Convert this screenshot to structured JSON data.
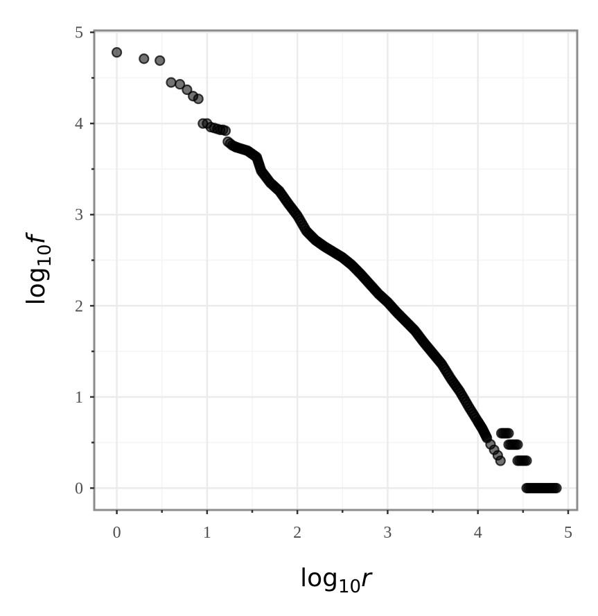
{
  "chart_data": {
    "type": "scatter",
    "title": "",
    "xlabel": "log10r",
    "ylabel": "log10f",
    "xlabel_parts": {
      "base": "log",
      "sub": "10",
      "var": "r"
    },
    "ylabel_parts": {
      "base": "log",
      "sub": "10",
      "var": "f"
    },
    "xlim": [
      -0.25,
      5.1
    ],
    "ylim": [
      -0.24,
      5.02
    ],
    "x_ticks": [
      0,
      1,
      2,
      3,
      4,
      5
    ],
    "y_ticks": [
      0,
      1,
      2,
      3,
      4,
      5
    ],
    "x_tick_labels": [
      "0",
      "1",
      "2",
      "3",
      "4",
      "5"
    ],
    "y_tick_labels": [
      "0",
      "1",
      "2",
      "3",
      "4",
      "5"
    ],
    "grid": true,
    "minor_grid": true,
    "legend": "none",
    "colors": {
      "point": "#000000",
      "point_alpha": 0.55,
      "grid": "#ebebeb",
      "frame": "#8c8c8c"
    },
    "points": [
      {
        "x": 0.0,
        "y": 4.78
      },
      {
        "x": 0.301,
        "y": 4.71
      },
      {
        "x": 0.477,
        "y": 4.69
      },
      {
        "x": 0.602,
        "y": 4.45
      },
      {
        "x": 0.699,
        "y": 4.43
      },
      {
        "x": 0.778,
        "y": 4.37
      },
      {
        "x": 0.845,
        "y": 4.3
      },
      {
        "x": 0.903,
        "y": 4.27
      },
      {
        "x": 0.954,
        "y": 4.0
      },
      {
        "x": 1.0,
        "y": 4.0
      },
      {
        "x": 1.041,
        "y": 3.96
      },
      {
        "x": 1.079,
        "y": 3.95
      },
      {
        "x": 1.114,
        "y": 3.94
      },
      {
        "x": 1.146,
        "y": 3.93
      },
      {
        "x": 1.176,
        "y": 3.93
      },
      {
        "x": 1.204,
        "y": 3.92
      },
      {
        "x": 1.23,
        "y": 3.8
      },
      {
        "x": 1.255,
        "y": 3.78
      },
      {
        "x": 1.279,
        "y": 3.76
      },
      {
        "x": 1.301,
        "y": 3.75
      },
      {
        "x": 1.322,
        "y": 3.74
      }
    ],
    "curve": [
      [
        1.32,
        3.74
      ],
      [
        1.45,
        3.7
      ],
      [
        1.55,
        3.63
      ],
      [
        1.6,
        3.48
      ],
      [
        1.7,
        3.35
      ],
      [
        1.8,
        3.26
      ],
      [
        1.9,
        3.12
      ],
      [
        2.0,
        2.99
      ],
      [
        2.1,
        2.82
      ],
      [
        2.2,
        2.72
      ],
      [
        2.3,
        2.65
      ],
      [
        2.4,
        2.59
      ],
      [
        2.5,
        2.53
      ],
      [
        2.6,
        2.45
      ],
      [
        2.7,
        2.35
      ],
      [
        2.8,
        2.24
      ],
      [
        2.9,
        2.13
      ],
      [
        3.0,
        2.04
      ],
      [
        3.1,
        1.93
      ],
      [
        3.2,
        1.83
      ],
      [
        3.3,
        1.73
      ],
      [
        3.4,
        1.6
      ],
      [
        3.5,
        1.48
      ],
      [
        3.6,
        1.36
      ],
      [
        3.7,
        1.2
      ],
      [
        3.8,
        1.06
      ],
      [
        3.9,
        0.89
      ],
      [
        4.0,
        0.73
      ],
      [
        4.05,
        0.65
      ],
      [
        4.1,
        0.55
      ]
    ],
    "tail_points": [
      {
        "x": 4.14,
        "y": 0.48
      },
      {
        "x": 4.18,
        "y": 0.42
      },
      {
        "x": 4.22,
        "y": 0.36
      },
      {
        "x": 4.25,
        "y": 0.3
      }
    ],
    "steps": [
      {
        "y": 0.602,
        "x_from": 4.26,
        "x_to": 4.34
      },
      {
        "y": 0.477,
        "x_from": 4.34,
        "x_to": 4.44
      },
      {
        "y": 0.301,
        "x_from": 4.44,
        "x_to": 4.54
      },
      {
        "y": 0.0,
        "x_from": 4.54,
        "x_to": 4.87
      }
    ]
  }
}
